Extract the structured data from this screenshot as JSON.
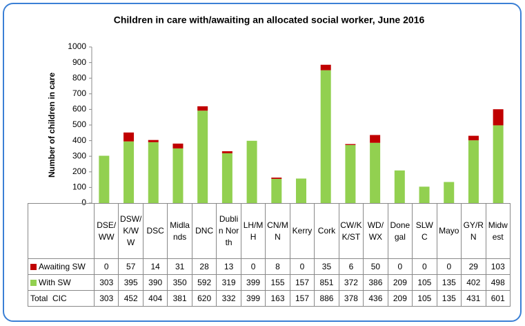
{
  "chart_data": {
    "type": "stacked_bar",
    "title": "Children in care with/awaiting an allocated social worker, June 2016",
    "ylabel": "Number of children in care",
    "categories": [
      "DSE/WW",
      "DSW/K/WW",
      "DSC",
      "Midlands",
      "DNC",
      "Dublin North",
      "LH/MH",
      "CN/MN",
      "Kerry",
      "Cork",
      "CW/KK/ST",
      "WD/WX",
      "Donegal",
      "SLWC",
      "Mayo",
      "GY/RN",
      "Midwest"
    ],
    "series": [
      {
        "name": "With SW",
        "color": "#92d050",
        "values": [
          303,
          395,
          390,
          350,
          592,
          319,
          399,
          155,
          157,
          851,
          372,
          386,
          209,
          105,
          135,
          402,
          498
        ]
      },
      {
        "name": "Awaiting SW",
        "color": "#c00000",
        "values": [
          0,
          57,
          14,
          31,
          28,
          13,
          0,
          8,
          0,
          35,
          6,
          50,
          0,
          0,
          0,
          29,
          103
        ]
      }
    ],
    "total_label": "Total  CIC",
    "totals": [
      303,
      452,
      404,
      381,
      620,
      332,
      399,
      163,
      157,
      886,
      378,
      436,
      209,
      105,
      135,
      431,
      601
    ],
    "ylim": [
      0,
      1000
    ],
    "yticks": [
      0,
      100,
      200,
      300,
      400,
      500,
      600,
      700,
      800,
      900,
      1000
    ],
    "legend": "table"
  }
}
